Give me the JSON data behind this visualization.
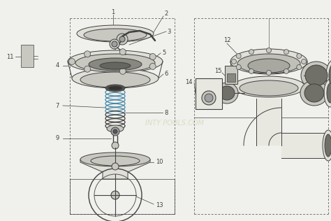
{
  "bg_color": "#f0f0ec",
  "lc": "#404040",
  "lc2": "#555555",
  "spring_blue": "#4488aa",
  "gray1": "#c8c8c0",
  "gray2": "#a0a0a0",
  "gray3": "#e0e0d8",
  "watermark": "INTY POOLS.COM"
}
